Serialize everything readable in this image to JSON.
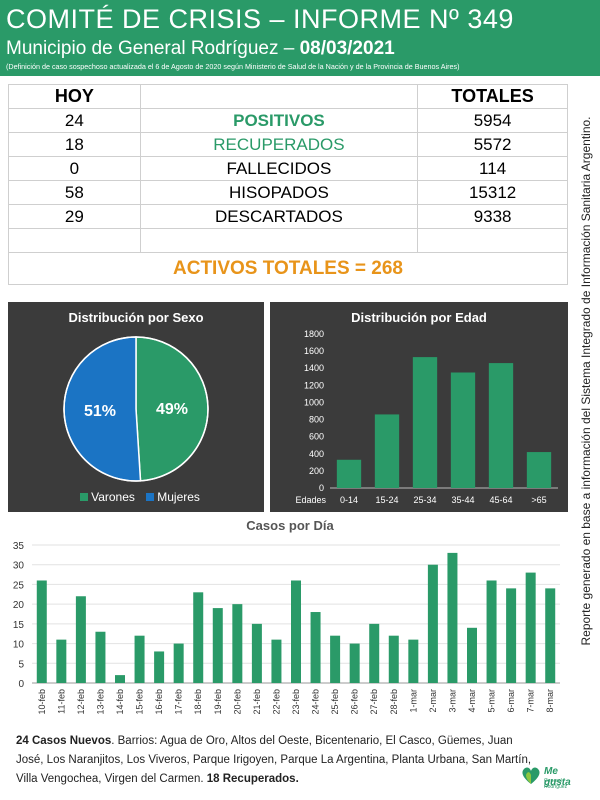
{
  "header": {
    "title": "COMITÉ DE CRISIS – INFORME Nº 349",
    "subtitle": "Municipio de General Rodríguez – ",
    "date": "08/03/2021",
    "note": "(Definición de caso sospechoso actualizada el 6 de Agosto de 2020 según Ministerio de Salud de la Nación y de la Provincia de Buenos Aires)"
  },
  "table": {
    "col_hoy": "HOY",
    "col_totales": "TOTALES",
    "rows": [
      {
        "hoy": "24",
        "label": "POSITIVOS",
        "total": "5954"
      },
      {
        "hoy": "18",
        "label": "RECUPERADOS",
        "total": "5572"
      },
      {
        "hoy": "0",
        "label": "FALLECIDOS",
        "total": "114"
      },
      {
        "hoy": "58",
        "label": "HISOPADOS",
        "total": "15312"
      },
      {
        "hoy": "29",
        "label": "DESCARTADOS",
        "total": "9338"
      }
    ],
    "activos": "ACTIVOS TOTALES = 268"
  },
  "side_note": "Reporte generado en base a información del Sistema Integrado de Información Sanitaria Argentino.",
  "colors": {
    "green": "#2a9a68",
    "blue": "#1b74c4",
    "orange": "#e8941a",
    "panel": "#3b3b3b"
  },
  "chart_data": [
    {
      "type": "pie",
      "title": "Distribución  por Sexo",
      "labels": [
        "Varones",
        "Mujeres"
      ],
      "values": [
        49,
        51
      ],
      "value_labels": [
        "49%",
        "51%"
      ],
      "colors": [
        "#2a9a68",
        "#1b74c4"
      ],
      "legend": "bottom"
    },
    {
      "type": "bar",
      "title": "Distribución  por Edad",
      "xlabel": "Edades",
      "categories": [
        "0-14",
        "15-24",
        "25-34",
        "35-44",
        "45-64",
        ">65"
      ],
      "values": [
        330,
        860,
        1530,
        1350,
        1460,
        420
      ],
      "ylim": [
        0,
        1800
      ],
      "yticks": [
        0,
        200,
        400,
        600,
        800,
        1000,
        1200,
        1400,
        1600,
        1800
      ],
      "grid": false
    },
    {
      "type": "bar",
      "title": "Casos por Día",
      "categories": [
        "10-feb",
        "11-feb",
        "12-feb",
        "13-feb",
        "14-feb",
        "15-feb",
        "16-feb",
        "17-feb",
        "18-feb",
        "19-feb",
        "20-feb",
        "21-feb",
        "22-feb",
        "23-feb",
        "24-feb",
        "25-feb",
        "26-feb",
        "27-feb",
        "28-feb",
        "1-mar",
        "2-mar",
        "3-mar",
        "4-mar",
        "5-mar",
        "6-mar",
        "7-mar",
        "8-mar"
      ],
      "values": [
        26,
        11,
        22,
        13,
        2,
        12,
        8,
        10,
        23,
        19,
        20,
        15,
        11,
        26,
        18,
        12,
        10,
        15,
        12,
        11,
        30,
        33,
        14,
        26,
        24,
        28,
        24
      ],
      "ylim": [
        0,
        35
      ],
      "yticks": [
        0,
        5,
        10,
        15,
        20,
        25,
        30,
        35
      ],
      "grid": true
    }
  ],
  "footer": {
    "nuevos": "24 Casos Nuevos",
    "barrios": ". Barrios: Agua de Oro, Altos del Oeste, Bicentenario, El Casco, Güemes, Juan José, Los Naranjitos, Los Viveros, Parque Irigoyen, Parque La Argentina, Planta Urbana, San Martín, Villa Vengochea, Virgen del Carmen. ",
    "recuperados": "18 Recuperados."
  },
  "logo": {
    "text": "Me gusta",
    "sub": "General Rodríguez"
  }
}
